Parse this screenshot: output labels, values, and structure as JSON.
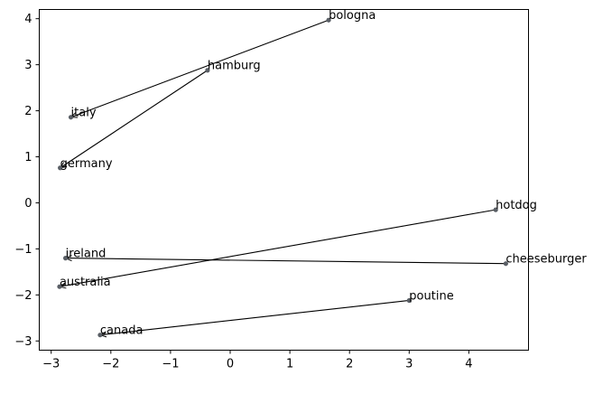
{
  "chart_data": {
    "type": "scatter",
    "title": "",
    "xlabel": "",
    "ylabel": "",
    "xlim": [
      -3.2,
      5.0
    ],
    "ylim": [
      -3.2,
      4.2
    ],
    "xticks": [
      -3,
      -2,
      -1,
      0,
      1,
      2,
      3,
      4
    ],
    "yticks": [
      -3,
      -2,
      -1,
      0,
      1,
      2,
      3,
      4
    ],
    "grid": false,
    "point_color": "#5a5f66",
    "arrow_color": "#000000",
    "points": [
      {
        "label": "bologna",
        "x": 1.65,
        "y": 3.97
      },
      {
        "label": "hamburg",
        "x": -0.38,
        "y": 2.88
      },
      {
        "label": "italy",
        "x": -2.67,
        "y": 1.86
      },
      {
        "label": "germany",
        "x": -2.85,
        "y": 0.76
      },
      {
        "label": "hotdog",
        "x": 4.45,
        "y": -0.15
      },
      {
        "label": "cheeseburger",
        "x": 4.62,
        "y": -1.32
      },
      {
        "label": "ireland",
        "x": -2.76,
        "y": -1.2
      },
      {
        "label": "australia",
        "x": -2.86,
        "y": -1.82
      },
      {
        "label": "poutine",
        "x": 3.0,
        "y": -2.12
      },
      {
        "label": "canada",
        "x": -2.18,
        "y": -2.87
      }
    ],
    "arrows": [
      {
        "from": "bologna",
        "to": "italy"
      },
      {
        "from": "hamburg",
        "to": "germany"
      },
      {
        "from": "hotdog",
        "to": "australia"
      },
      {
        "from": "cheeseburger",
        "to": "ireland"
      },
      {
        "from": "poutine",
        "to": "canada"
      }
    ]
  }
}
